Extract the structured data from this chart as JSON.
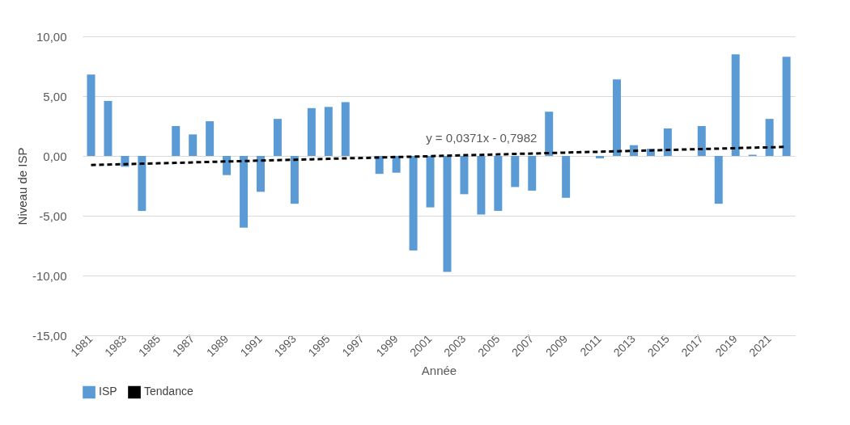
{
  "chart_data": {
    "type": "bar",
    "xlabel": "Année",
    "ylabel": "Niveau de ISP",
    "categories": [
      "1981",
      null,
      "1983",
      null,
      "1985",
      null,
      "1987",
      null,
      "1989",
      null,
      "1991",
      null,
      "1993",
      null,
      "1995",
      null,
      "1997",
      null,
      "1999",
      null,
      "2001",
      null,
      "2003",
      null,
      "2005",
      null,
      "2007",
      null,
      "2009",
      null,
      "2011",
      null,
      "2013",
      null,
      "2015",
      null,
      "2017",
      null,
      "2019",
      null,
      "2021",
      null
    ],
    "series": [
      {
        "name": "ISP",
        "type": "bar",
        "color": "#5b9bd5",
        "values": [
          6.8,
          4.6,
          -0.9,
          -4.6,
          0,
          2.5,
          1.8,
          2.9,
          -1.6,
          -6.0,
          -3.0,
          3.1,
          -4.0,
          4.0,
          4.1,
          4.5,
          0,
          -1.5,
          -1.4,
          -7.9,
          -4.3,
          -9.7,
          -3.2,
          -4.9,
          -4.6,
          -2.6,
          -2.9,
          3.7,
          -3.5,
          0,
          -0.2,
          6.4,
          0.9,
          0.6,
          2.3,
          0,
          2.5,
          -4.0,
          8.5,
          0.1,
          3.1,
          8.3
        ]
      },
      {
        "name": "Tendance",
        "type": "line",
        "color": "#000000",
        "line_style": "dashed",
        "values": [
          -0.76,
          -0.72,
          -0.69,
          -0.65,
          -0.61,
          -0.58,
          -0.54,
          -0.5,
          -0.46,
          -0.43,
          -0.39,
          -0.35,
          -0.32,
          -0.28,
          -0.24,
          -0.2,
          -0.17,
          -0.13,
          -0.09,
          -0.06,
          -0.02,
          0.02,
          0.06,
          0.09,
          0.13,
          0.17,
          0.2,
          0.24,
          0.28,
          0.32,
          0.35,
          0.39,
          0.43,
          0.46,
          0.5,
          0.54,
          0.58,
          0.61,
          0.65,
          0.69,
          0.72,
          0.76
        ]
      }
    ],
    "annotations": [
      "y = 0,0371x - 0,7982"
    ],
    "ylim": [
      -15,
      10
    ],
    "yticks": [
      {
        "value": -15,
        "label": "-15,00"
      },
      {
        "value": -10,
        "label": "-10,00"
      },
      {
        "value": -5,
        "label": "-5,00"
      },
      {
        "value": 0,
        "label": "0,00"
      },
      {
        "value": 5,
        "label": "5,00"
      },
      {
        "value": 10,
        "label": "10,00"
      }
    ],
    "grid": "y",
    "legend": "bottom"
  }
}
